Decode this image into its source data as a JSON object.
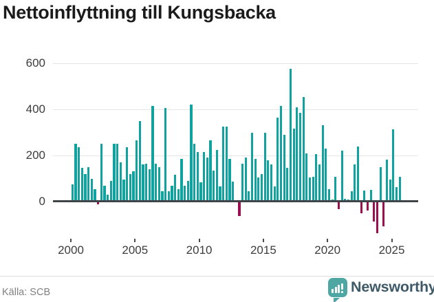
{
  "header": {
    "title": "Nettoinflyttning till Kungsbacka"
  },
  "chart_data": {
    "type": "bar",
    "title": "Nettoinflyttning till Kungsbacka",
    "xlabel": "",
    "ylabel": "",
    "grid": "horizontal",
    "legend": "none",
    "ylim": [
      -160,
      640
    ],
    "y_ticks": [
      0,
      200,
      400,
      600
    ],
    "x_tick_years": [
      2000,
      2005,
      2010,
      2015,
      2020,
      2025
    ],
    "bar_color_positive": "#10a29e",
    "bar_color_negative": "#9c0f4e",
    "quarters": [
      "2000Q1",
      "2000Q2",
      "2000Q3",
      "2000Q4",
      "2001Q1",
      "2001Q2",
      "2001Q3",
      "2001Q4",
      "2002Q1",
      "2002Q2",
      "2002Q3",
      "2002Q4",
      "2003Q1",
      "2003Q2",
      "2003Q3",
      "2003Q4",
      "2004Q1",
      "2004Q2",
      "2004Q3",
      "2004Q4",
      "2005Q1",
      "2005Q2",
      "2005Q3",
      "2005Q4",
      "2006Q1",
      "2006Q2",
      "2006Q3",
      "2006Q4",
      "2007Q1",
      "2007Q2",
      "2007Q3",
      "2007Q4",
      "2008Q1",
      "2008Q2",
      "2008Q3",
      "2008Q4",
      "2009Q1",
      "2009Q2",
      "2009Q3",
      "2009Q4",
      "2010Q1",
      "2010Q2",
      "2010Q3",
      "2010Q4",
      "2011Q1",
      "2011Q2",
      "2011Q3",
      "2011Q4",
      "2012Q1",
      "2012Q2",
      "2012Q3",
      "2012Q4",
      "2013Q1",
      "2013Q2",
      "2013Q3",
      "2013Q4",
      "2014Q1",
      "2014Q2",
      "2014Q3",
      "2014Q4",
      "2015Q1",
      "2015Q2",
      "2015Q3",
      "2015Q4",
      "2016Q1",
      "2016Q2",
      "2016Q3",
      "2016Q4",
      "2017Q1",
      "2017Q2",
      "2017Q3",
      "2017Q4",
      "2018Q1",
      "2018Q2",
      "2018Q3",
      "2018Q4",
      "2019Q1",
      "2019Q2",
      "2019Q3",
      "2019Q4",
      "2020Q1",
      "2020Q2",
      "2020Q3",
      "2020Q4",
      "2021Q1",
      "2021Q2",
      "2021Q3",
      "2021Q4",
      "2022Q1",
      "2022Q2",
      "2022Q3",
      "2022Q4",
      "2023Q1",
      "2023Q2",
      "2023Q3",
      "2023Q4",
      "2024Q1",
      "2024Q2",
      "2024Q3",
      "2024Q4",
      "2025Q1",
      "2025Q2",
      "2025Q3"
    ],
    "values": [
      75,
      250,
      235,
      145,
      120,
      150,
      100,
      55,
      -10,
      250,
      70,
      30,
      90,
      250,
      250,
      170,
      95,
      235,
      120,
      130,
      265,
      350,
      160,
      165,
      140,
      415,
      165,
      150,
      45,
      405,
      45,
      70,
      115,
      55,
      185,
      70,
      90,
      420,
      250,
      215,
      85,
      215,
      190,
      265,
      135,
      225,
      65,
      325,
      325,
      185,
      87,
      5,
      -60,
      165,
      190,
      45,
      300,
      185,
      105,
      120,
      300,
      180,
      160,
      65,
      365,
      415,
      290,
      145,
      575,
      315,
      410,
      385,
      455,
      210,
      105,
      107,
      205,
      160,
      330,
      230,
      55,
      10,
      108,
      -30,
      220,
      12,
      8,
      45,
      160,
      240,
      -48,
      47,
      -36,
      51,
      -83,
      -135,
      150,
      -103,
      183,
      97,
      314,
      64,
      108
    ]
  },
  "footer": {
    "source": "Källa: SCB",
    "brand": "Newsworthy"
  }
}
